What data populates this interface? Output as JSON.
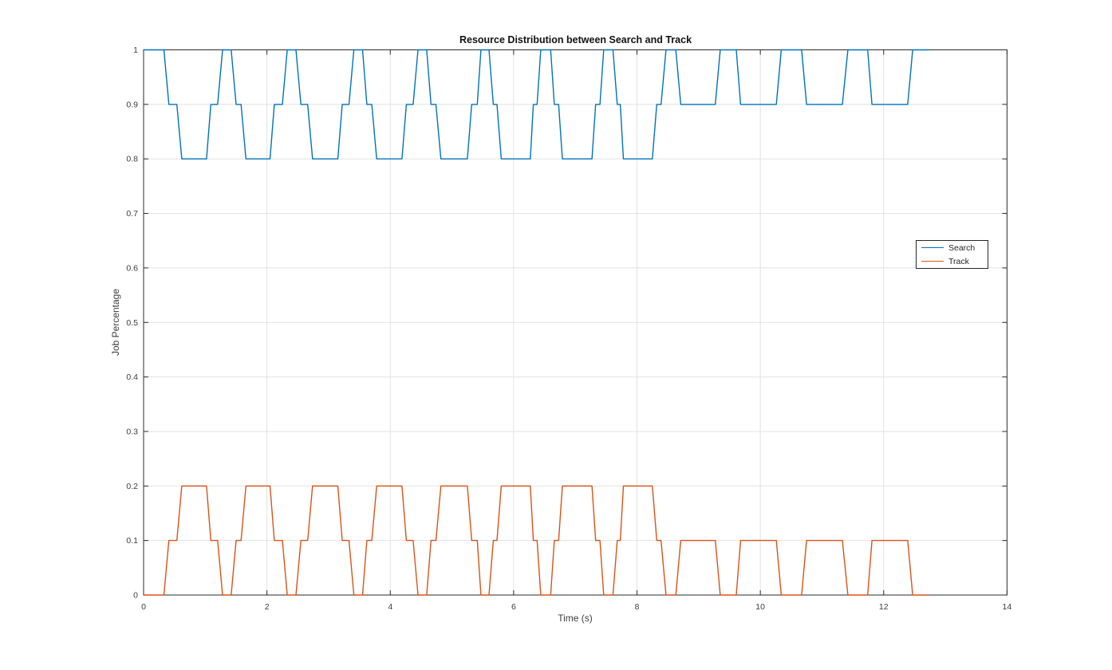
{
  "figure": {
    "title": "Resource Distribution between Search and Track",
    "xlabel": "Time (s)",
    "ylabel": "Job Percentage"
  },
  "legend": {
    "position": "right-middle",
    "entries": [
      {
        "label": "Search",
        "color": "#0072BD"
      },
      {
        "label": "Track",
        "color": "#D95319"
      }
    ]
  },
  "chart_data": {
    "type": "line",
    "title": "Resource Distribution between Search and Track",
    "xlabel": "Time (s)",
    "ylabel": "Job Percentage",
    "xlim": [
      0,
      14
    ],
    "ylim": [
      0,
      1
    ],
    "grid": true,
    "legend_position": "right-middle",
    "xticks": {
      "values": [
        0,
        2,
        4,
        6,
        8,
        10,
        12,
        14
      ],
      "labels": [
        "0",
        "2",
        "4",
        "6",
        "8",
        "10",
        "12",
        "14"
      ]
    },
    "yticks": {
      "values": [
        0,
        0.1,
        0.2,
        0.3,
        0.4,
        0.5,
        0.6,
        0.7,
        0.8,
        0.9,
        1
      ],
      "labels": [
        "0",
        "0.1",
        "0.2",
        "0.3",
        "0.4",
        "0.5",
        "0.6",
        "0.7",
        "0.8",
        "0.9",
        "1"
      ]
    },
    "x": [
      0,
      0.33,
      0.41,
      0.54,
      0.62,
      1.02,
      1.09,
      1.2,
      1.28,
      1.42,
      1.5,
      1.58,
      1.66,
      2.05,
      2.12,
      2.25,
      2.33,
      2.47,
      2.55,
      2.66,
      2.74,
      3.15,
      3.22,
      3.33,
      3.41,
      3.55,
      3.62,
      3.7,
      3.78,
      4.19,
      4.26,
      4.37,
      4.45,
      4.59,
      4.66,
      4.74,
      4.82,
      5.25,
      5.32,
      5.41,
      5.47,
      5.6,
      5.67,
      5.73,
      5.8,
      6.27,
      6.32,
      6.38,
      6.44,
      6.6,
      6.66,
      6.73,
      6.79,
      7.27,
      7.33,
      7.4,
      7.46,
      7.61,
      7.68,
      7.73,
      7.78,
      8.25,
      8.32,
      8.39,
      8.47,
      8.63,
      8.71,
      9.27,
      9.35,
      9.61,
      9.68,
      10.26,
      10.34,
      10.67,
      10.75,
      11.33,
      11.42,
      11.74,
      11.81,
      12.39,
      12.47,
      12.73
    ],
    "series": [
      {
        "name": "Search",
        "color": "#0072BD",
        "values": [
          1,
          1,
          0.9,
          0.9,
          0.8,
          0.8,
          0.9,
          0.9,
          1,
          1,
          0.9,
          0.9,
          0.8,
          0.8,
          0.9,
          0.9,
          1,
          1,
          0.9,
          0.9,
          0.8,
          0.8,
          0.9,
          0.9,
          1,
          1,
          0.9,
          0.9,
          0.8,
          0.8,
          0.9,
          0.9,
          1,
          1,
          0.9,
          0.9,
          0.8,
          0.8,
          0.9,
          0.9,
          1,
          1,
          0.9,
          0.9,
          0.8,
          0.8,
          0.9,
          0.9,
          1,
          1,
          0.9,
          0.9,
          0.8,
          0.8,
          0.9,
          0.9,
          1,
          1,
          0.9,
          0.9,
          0.8,
          0.8,
          0.9,
          0.9,
          1,
          1,
          0.9,
          0.9,
          1,
          1,
          0.9,
          0.9,
          1,
          1,
          0.9,
          0.9,
          1,
          1,
          0.9,
          0.9,
          1,
          1
        ]
      },
      {
        "name": "Track",
        "color": "#D95319",
        "values": [
          0,
          0,
          0.1,
          0.1,
          0.2,
          0.2,
          0.1,
          0.1,
          0,
          0,
          0.1,
          0.1,
          0.2,
          0.2,
          0.1,
          0.1,
          0,
          0,
          0.1,
          0.1,
          0.2,
          0.2,
          0.1,
          0.1,
          0,
          0,
          0.1,
          0.1,
          0.2,
          0.2,
          0.1,
          0.1,
          0,
          0,
          0.1,
          0.1,
          0.2,
          0.2,
          0.1,
          0.1,
          0,
          0,
          0.1,
          0.1,
          0.2,
          0.2,
          0.1,
          0.1,
          0,
          0,
          0.1,
          0.1,
          0.2,
          0.2,
          0.1,
          0.1,
          0,
          0,
          0.1,
          0.1,
          0.2,
          0.2,
          0.1,
          0.1,
          0,
          0,
          0.1,
          0.1,
          0,
          0,
          0.1,
          0.1,
          0,
          0,
          0.1,
          0.1,
          0,
          0,
          0.1,
          0.1,
          0,
          0
        ]
      }
    ]
  }
}
